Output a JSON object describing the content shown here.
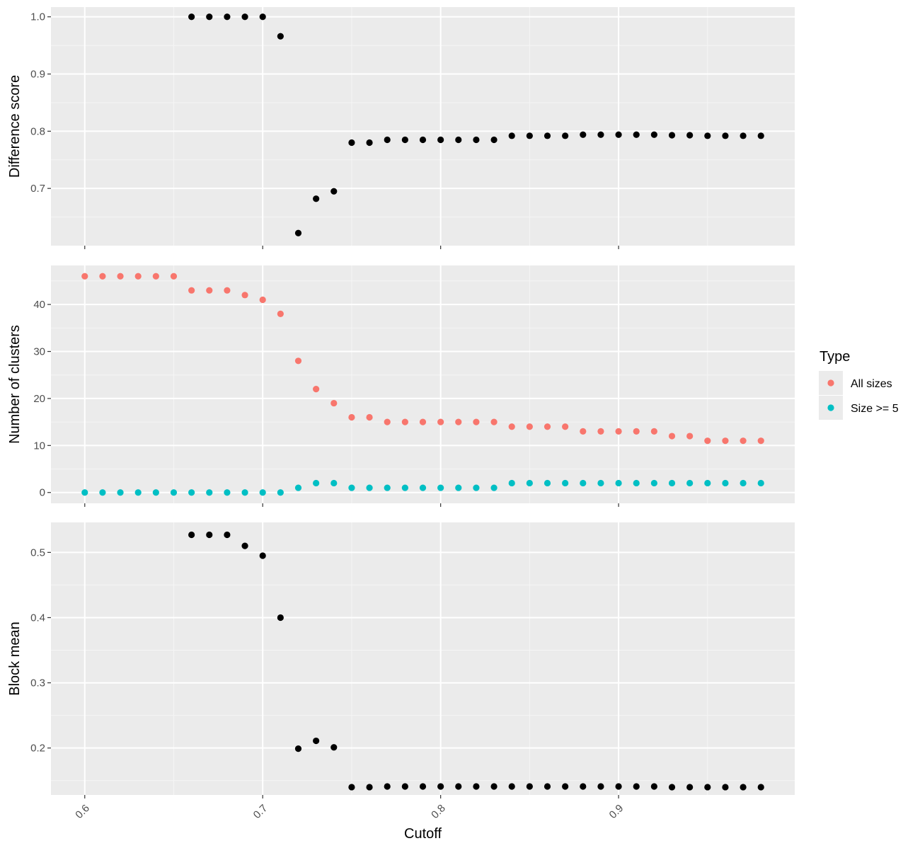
{
  "xlabel": "Cutoff",
  "x_ticks": [
    "0.6",
    "0.7",
    "0.8",
    "0.9"
  ],
  "colors": {
    "panel_bg": "#ebebeb",
    "grid_major": "#ffffff",
    "grid_minor": "#f5f5f5",
    "black_points": "#000000",
    "all_sizes": "#f8766d",
    "size_ge_5": "#00bfc4"
  },
  "legend": {
    "title": "Type",
    "items": [
      {
        "label": "All sizes",
        "color": "#f8766d"
      },
      {
        "label": "Size >= 5",
        "color": "#00bfc4"
      }
    ]
  },
  "chart_data": [
    {
      "type": "scatter",
      "ylabel": "Difference score",
      "xlim": [
        0.581,
        0.999
      ],
      "ylim": [
        0.6,
        1.017
      ],
      "y_ticks": [
        "0.7",
        "0.8",
        "0.9",
        "1.0"
      ],
      "series": [
        {
          "color": "#000000",
          "x": [
            0.66,
            0.67,
            0.68,
            0.69,
            0.7,
            0.71,
            0.72,
            0.73,
            0.74,
            0.75,
            0.76,
            0.77,
            0.78,
            0.79,
            0.8,
            0.81,
            0.82,
            0.83,
            0.84,
            0.85,
            0.86,
            0.87,
            0.88,
            0.89,
            0.9,
            0.91,
            0.92,
            0.93,
            0.94,
            0.95,
            0.96,
            0.97,
            0.98
          ],
          "y": [
            1.0,
            1.0,
            1.0,
            1.0,
            1.0,
            0.966,
            0.622,
            0.682,
            0.695,
            0.78,
            0.78,
            0.785,
            0.785,
            0.785,
            0.785,
            0.785,
            0.785,
            0.785,
            0.792,
            0.792,
            0.792,
            0.792,
            0.794,
            0.794,
            0.794,
            0.794,
            0.794,
            0.793,
            0.793,
            0.792,
            0.792,
            0.792,
            0.792
          ]
        }
      ]
    },
    {
      "type": "scatter",
      "ylabel": "Number of clusters",
      "xlim": [
        0.581,
        0.999
      ],
      "ylim": [
        -2.3,
        48.3
      ],
      "y_ticks": [
        "0",
        "10",
        "20",
        "30",
        "40"
      ],
      "series": [
        {
          "name": "All sizes",
          "color": "#f8766d",
          "x": [
            0.6,
            0.61,
            0.62,
            0.63,
            0.64,
            0.65,
            0.66,
            0.67,
            0.68,
            0.69,
            0.7,
            0.71,
            0.72,
            0.73,
            0.74,
            0.75,
            0.76,
            0.77,
            0.78,
            0.79,
            0.8,
            0.81,
            0.82,
            0.83,
            0.84,
            0.85,
            0.86,
            0.87,
            0.88,
            0.89,
            0.9,
            0.91,
            0.92,
            0.93,
            0.94,
            0.95,
            0.96,
            0.97,
            0.98
          ],
          "y": [
            46,
            46,
            46,
            46,
            46,
            46,
            43,
            43,
            43,
            42,
            41,
            38,
            28,
            22,
            19,
            16,
            16,
            15,
            15,
            15,
            15,
            15,
            15,
            15,
            14,
            14,
            14,
            14,
            13,
            13,
            13,
            13,
            13,
            12,
            12,
            11,
            11,
            11,
            11
          ]
        },
        {
          "name": "Size >= 5",
          "color": "#00bfc4",
          "x": [
            0.6,
            0.61,
            0.62,
            0.63,
            0.64,
            0.65,
            0.66,
            0.67,
            0.68,
            0.69,
            0.7,
            0.71,
            0.72,
            0.73,
            0.74,
            0.75,
            0.76,
            0.77,
            0.78,
            0.79,
            0.8,
            0.81,
            0.82,
            0.83,
            0.84,
            0.85,
            0.86,
            0.87,
            0.88,
            0.89,
            0.9,
            0.91,
            0.92,
            0.93,
            0.94,
            0.95,
            0.96,
            0.97,
            0.98
          ],
          "y": [
            0,
            0,
            0,
            0,
            0,
            0,
            0,
            0,
            0,
            0,
            0,
            0,
            1,
            2,
            2,
            1,
            1,
            1,
            1,
            1,
            1,
            1,
            1,
            1,
            2,
            2,
            2,
            2,
            2,
            2,
            2,
            2,
            2,
            2,
            2,
            2,
            2,
            2,
            2
          ]
        }
      ]
    },
    {
      "type": "scatter",
      "ylabel": "Block mean",
      "xlim": [
        0.581,
        0.999
      ],
      "ylim": [
        0.128,
        0.546
      ],
      "y_ticks": [
        "0.2",
        "0.3",
        "0.4",
        "0.5"
      ],
      "series": [
        {
          "color": "#000000",
          "x": [
            0.66,
            0.67,
            0.68,
            0.69,
            0.7,
            0.71,
            0.72,
            0.73,
            0.74,
            0.75,
            0.76,
            0.77,
            0.78,
            0.79,
            0.8,
            0.81,
            0.82,
            0.83,
            0.84,
            0.85,
            0.86,
            0.87,
            0.88,
            0.89,
            0.9,
            0.91,
            0.92,
            0.93,
            0.94,
            0.95,
            0.96,
            0.97,
            0.98
          ],
          "y": [
            0.527,
            0.527,
            0.527,
            0.51,
            0.495,
            0.4,
            0.199,
            0.211,
            0.201,
            0.14,
            0.14,
            0.141,
            0.141,
            0.141,
            0.141,
            0.141,
            0.141,
            0.141,
            0.141,
            0.141,
            0.141,
            0.141,
            0.141,
            0.141,
            0.141,
            0.141,
            0.141,
            0.14,
            0.14,
            0.14,
            0.14,
            0.14,
            0.14
          ]
        }
      ]
    }
  ]
}
